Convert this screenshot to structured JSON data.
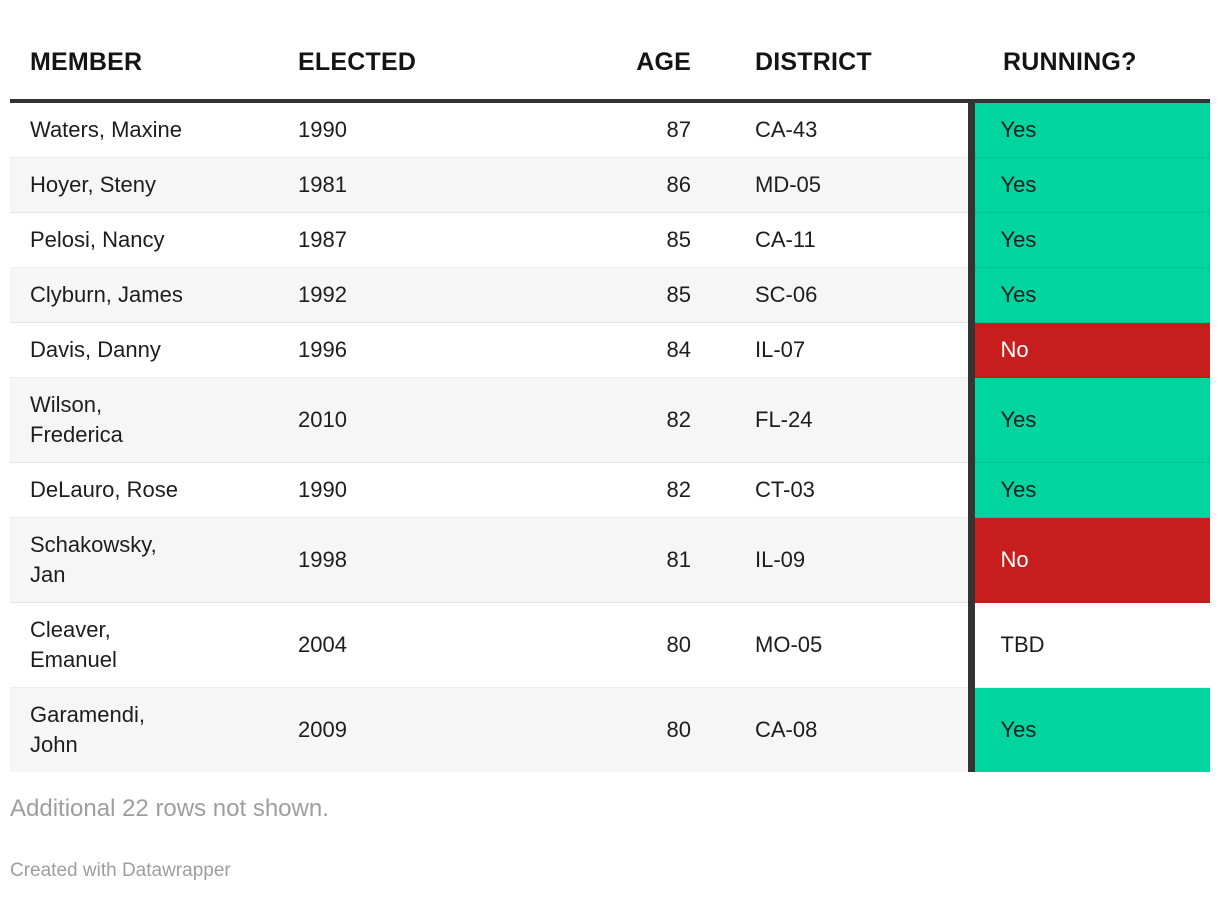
{
  "chart_data": {
    "type": "table",
    "columns": [
      "MEMBER",
      "ELECTED",
      "AGE",
      "DISTRICT",
      "RUNNING?"
    ],
    "rows": [
      {
        "member": "Waters, Maxine",
        "elected": "1990",
        "age": "87",
        "district": "CA-43",
        "running": "Yes",
        "running_status": "yes"
      },
      {
        "member": "Hoyer, Steny",
        "elected": "1981",
        "age": "86",
        "district": "MD-05",
        "running": "Yes",
        "running_status": "yes"
      },
      {
        "member": "Pelosi, Nancy",
        "elected": "1987",
        "age": "85",
        "district": "CA-11",
        "running": "Yes",
        "running_status": "yes"
      },
      {
        "member": "Clyburn, James",
        "elected": "1992",
        "age": "85",
        "district": "SC-06",
        "running": "Yes",
        "running_status": "yes"
      },
      {
        "member": "Davis, Danny",
        "elected": "1996",
        "age": "84",
        "district": "IL-07",
        "running": "No",
        "running_status": "no"
      },
      {
        "member": "Wilson,\nFrederica",
        "elected": "2010",
        "age": "82",
        "district": "FL-24",
        "running": "Yes",
        "running_status": "yes"
      },
      {
        "member": "DeLauro, Rose",
        "elected": "1990",
        "age": "82",
        "district": "CT-03",
        "running": "Yes",
        "running_status": "yes"
      },
      {
        "member": "Schakowsky,\nJan",
        "elected": "1998",
        "age": "81",
        "district": "IL-09",
        "running": "No",
        "running_status": "no"
      },
      {
        "member": "Cleaver,\nEmanuel",
        "elected": "2004",
        "age": "80",
        "district": "MO-05",
        "running": "TBD",
        "running_status": "tbd"
      },
      {
        "member": "Garamendi,\nJohn",
        "elected": "2009",
        "age": "80",
        "district": "CA-08",
        "running": "Yes",
        "running_status": "yes"
      }
    ],
    "note": "Additional 22 rows not shown.",
    "attribution": "Created with Datawrapper",
    "legend_position": "none",
    "grid": "row-stripes"
  },
  "colors": {
    "status": {
      "yes": {
        "bg": "#00d5a0",
        "text": "#1d1d1d"
      },
      "no": {
        "bg": "#c71e1d",
        "text": "#ffffff"
      },
      "tbd": {
        "bg": "",
        "text": "#1d1d1d"
      }
    },
    "header_rule": "#333333",
    "running_divider": "#333333",
    "alt_row_bg": "#f6f6f6",
    "body_text": "#1d1d1d",
    "muted_text": "#9e9e9e"
  }
}
